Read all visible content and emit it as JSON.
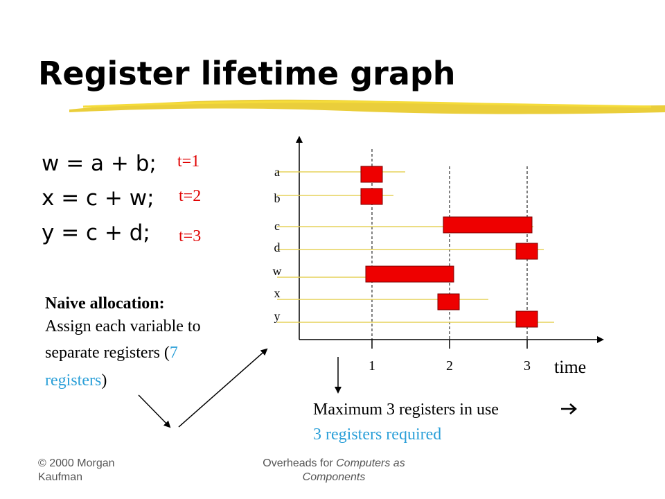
{
  "title": "Register lifetime graph",
  "code": [
    {
      "statement": "w = a + b;",
      "time": "t=1"
    },
    {
      "statement": "x = c + w;",
      "time": "t=2"
    },
    {
      "statement": "y = c + d;",
      "time": "t=3"
    }
  ],
  "naive": {
    "heading": "Naive allocation:",
    "line1": "Assign each variable to",
    "line2": "separate registers (",
    "highlight1": "7",
    "highlight2": "registers",
    "end": ")"
  },
  "graph": {
    "variables": [
      "a",
      "b",
      "c",
      "d",
      "w",
      "x",
      "y"
    ],
    "ticks": [
      "1",
      "2",
      "3"
    ],
    "axis_label": "time"
  },
  "conclusion": {
    "line1": "Maximum 3 registers in use",
    "line2": "3 registers required"
  },
  "footer": {
    "left1": "© 2000 Morgan",
    "left2": "Kaufman",
    "right1_a": "Overheads for ",
    "right1_b": "Computers as",
    "right2": "Components"
  }
}
